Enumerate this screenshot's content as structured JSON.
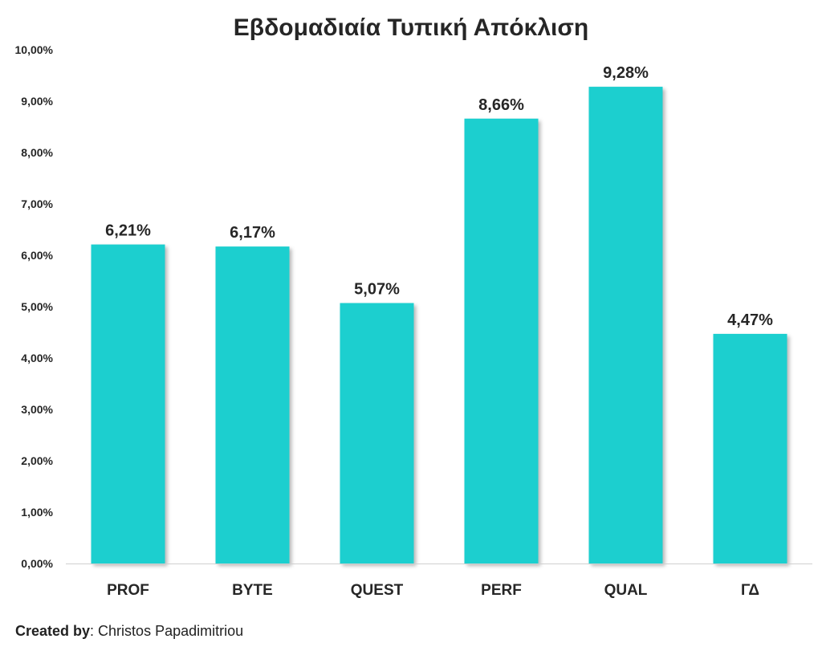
{
  "chart_data": {
    "type": "bar",
    "title": "Εβδομαδιαία Τυπική Απόκλιση",
    "categories": [
      "PROF",
      "BYTE",
      "QUEST",
      "PERF",
      "QUAL",
      "ΓΔ"
    ],
    "values": [
      6.21,
      6.17,
      5.07,
      8.66,
      9.28,
      4.47
    ],
    "data_labels": [
      "6,21%",
      "6,17%",
      "5,07%",
      "8,66%",
      "9,28%",
      "4,47%"
    ],
    "ylim": [
      0,
      10
    ],
    "yticks": [
      0,
      1,
      2,
      3,
      4,
      5,
      6,
      7,
      8,
      9,
      10
    ],
    "ytick_labels": [
      "0,00%",
      "1,00%",
      "2,00%",
      "3,00%",
      "4,00%",
      "5,00%",
      "6,00%",
      "7,00%",
      "8,00%",
      "9,00%",
      "10,00%"
    ],
    "xlabel": "",
    "ylabel": "",
    "grid": false,
    "legend": "none",
    "bar_color": "#1DCFCF",
    "text_color": "#262626"
  },
  "footer": {
    "lead": "Created by",
    "rest": ": Christos Papadimitriou"
  }
}
